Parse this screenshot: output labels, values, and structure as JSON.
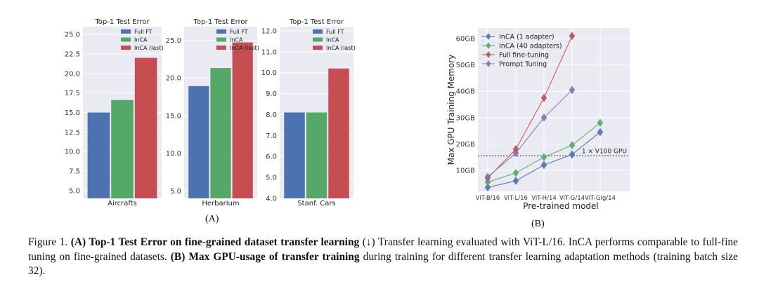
{
  "chart_data": [
    {
      "type": "bar",
      "title": "Top-1 Test Error",
      "xlabel": "Aircrafts",
      "ylabel": "",
      "ylim": [
        4.0,
        26.0
      ],
      "yticks": [
        "5.0",
        "7.5",
        "10.0",
        "12.5",
        "15.0",
        "17.5",
        "20.0",
        "22.5",
        "25.0"
      ],
      "series": [
        {
          "name": "Full FT",
          "values": [
            15.0
          ]
        },
        {
          "name": "InCA",
          "values": [
            16.6
          ]
        },
        {
          "name": "InCA (last)",
          "values": [
            22.0
          ]
        }
      ]
    },
    {
      "type": "bar",
      "title": "Top-1 Test Error",
      "xlabel": "Herbarium",
      "ylabel": "",
      "ylim": [
        4.0,
        26.8
      ],
      "yticks": [
        "5.0",
        "10.0",
        "15.0",
        "20.0",
        "25.0"
      ],
      "series": [
        {
          "name": "Full FT",
          "values": [
            18.9
          ]
        },
        {
          "name": "InCA",
          "values": [
            21.3
          ]
        },
        {
          "name": "InCA (last)",
          "values": [
            24.7
          ]
        }
      ]
    },
    {
      "type": "bar",
      "title": "Top-1 Test Error",
      "xlabel": "Stanf. Cars",
      "ylabel": "",
      "ylim": [
        4.0,
        12.2
      ],
      "yticks": [
        "4.0",
        "5.0",
        "6.0",
        "7.0",
        "8.0",
        "9.0",
        "10.0",
        "11.0",
        "12.0"
      ],
      "series": [
        {
          "name": "Full FT",
          "values": [
            8.1
          ]
        },
        {
          "name": "InCA",
          "values": [
            8.1
          ]
        },
        {
          "name": "InCA (last)",
          "values": [
            10.2
          ]
        }
      ]
    },
    {
      "type": "line",
      "title": "",
      "xlabel": "Pre-trained model",
      "ylabel": "Max GPU Training Memory",
      "categories": [
        "ViT-B/16",
        "ViT-L/16",
        "ViT-H/14",
        "ViT-G/14",
        "ViT-Gig/14"
      ],
      "ylim": [
        2,
        64
      ],
      "yticks": [
        10,
        20,
        30,
        40,
        50,
        60
      ],
      "ytick_labels": [
        "10GB",
        "20GB",
        "30GB",
        "40GB",
        "50GB",
        "60GB"
      ],
      "reference_line": {
        "y": 15.5,
        "label": "1 × V100 GPU"
      },
      "series": [
        {
          "name": "InCA (1 adapter)",
          "values": [
            3.5,
            6.0,
            12.0,
            16.0,
            24.5
          ]
        },
        {
          "name": "InCA (40 adapters)",
          "values": [
            5.5,
            9.0,
            15.0,
            19.5,
            28.0
          ]
        },
        {
          "name": "Full fine-tuning",
          "values": [
            7.0,
            18.0,
            37.5,
            61.0,
            null
          ]
        },
        {
          "name": "Prompt Tuning",
          "values": [
            7.5,
            16.5,
            30.0,
            40.5,
            null
          ]
        }
      ]
    }
  ],
  "colors": {
    "Full FT": "#4c72b0",
    "InCA": "#55a868",
    "InCA (last)": "#c44e52",
    "InCA (1 adapter)": "#4c72b0",
    "InCA (40 adapters)": "#55a868",
    "Full fine-tuning": "#c44e52",
    "Prompt Tuning": "#8172b2",
    "plot_bg": "#eaeaf2"
  },
  "labels": {
    "panel_a": "(A)",
    "panel_b": "(B)"
  },
  "caption": {
    "prefix": "Figure 1. ",
    "bold1": "(A) Top-1 Test Error on fine-grained dataset transfer learning",
    "mid1": " (↓) Transfer learning evaluated with ViT-L/16. InCA performs comparable to full-fine tuning on fine-grained datasets. ",
    "bold2": "(B) Max GPU-usage of transfer training",
    "mid2": " during training for different transfer learning adaptation methods (training batch size 32)."
  }
}
